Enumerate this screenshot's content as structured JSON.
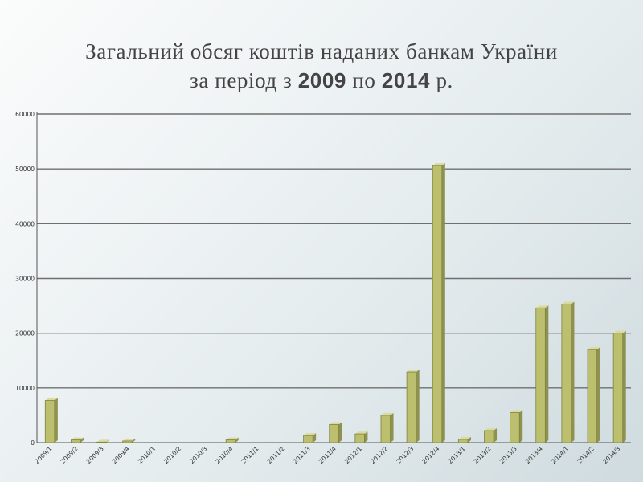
{
  "title": {
    "line1": "Загальний обсяг коштів наданих банкам України",
    "line2_pre": "за період з ",
    "year_from": "2009",
    "line2_mid": " по ",
    "year_to": "2014",
    "line2_post": " р."
  },
  "chart_data": {
    "type": "bar",
    "categories": [
      "2009/1",
      "2009/2",
      "2009/3",
      "2009/4",
      "2010/1",
      "2010/2",
      "2010/3",
      "2010/4",
      "2011/1",
      "2011/2",
      "2011/3",
      "2011/4",
      "2012/1",
      "2012/2",
      "2012/3",
      "2012/4",
      "2013/1",
      "2013/2",
      "2013/3",
      "2013/4",
      "2014/1",
      "2014/2",
      "2014/3"
    ],
    "values": [
      7700,
      500,
      100,
      300,
      0,
      0,
      0,
      500,
      0,
      0,
      1300,
      3300,
      1600,
      5000,
      12900,
      50600,
      600,
      2200,
      5500,
      24600,
      25300,
      17000,
      20000
    ],
    "ylim": [
      0,
      60000
    ],
    "yticks": [
      "0",
      "10000",
      "20000",
      "30000",
      "40000",
      "50000",
      "60000"
    ],
    "grid": true,
    "colors": {
      "bar": "#bcbf6e",
      "bar_edge": "#7f8240",
      "bar_side": "#8e9150",
      "axis": "#555555",
      "grid": "#6f6f6f"
    }
  }
}
